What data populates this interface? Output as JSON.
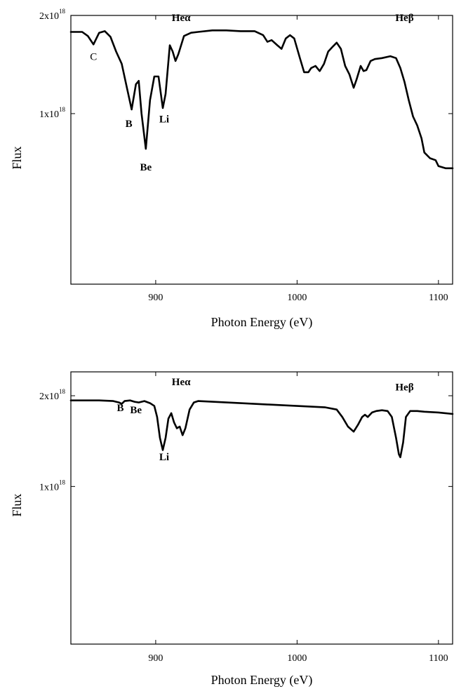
{
  "chart_data": [
    {
      "type": "line",
      "title": "",
      "xlabel": "Photon Energy (eV)",
      "ylabel": "Flux",
      "xlim": [
        840,
        1110
      ],
      "ylim_log": [
        3e+17,
        2e+18
      ],
      "x_ticks": [
        900,
        1000,
        1100
      ],
      "y_ticks": [
        {
          "value": 1e+18,
          "mantissa": "1x10",
          "exp": "18"
        },
        {
          "value": 2e+18,
          "mantissa": "2x10",
          "exp": "18"
        }
      ],
      "grid": false,
      "annotations": [
        {
          "text": "Heα",
          "x": 918,
          "y": 1.92e+18
        },
        {
          "text": "Heβ",
          "x": 1076,
          "y": 1.92e+18
        },
        {
          "text": "C",
          "x": 856,
          "y": 1.46e+18
        },
        {
          "text": "B",
          "x": 881,
          "y": 9.1e+17
        },
        {
          "text": "Be",
          "x": 893,
          "y": 6.7e+17
        },
        {
          "text": "Li",
          "x": 906,
          "y": 9.4e+17
        }
      ],
      "series": [
        {
          "x": [
            840,
            848,
            852,
            856,
            860,
            864,
            868,
            872,
            876,
            880,
            883,
            886,
            888,
            890,
            893,
            896,
            899,
            902,
            905,
            907,
            910,
            912,
            914,
            916,
            920,
            925,
            930,
            940,
            950,
            960,
            970,
            976,
            979,
            982,
            986,
            989,
            992,
            995,
            998,
            1002,
            1005,
            1008,
            1010,
            1013,
            1016,
            1019,
            1022,
            1025,
            1028,
            1031,
            1034,
            1037,
            1040,
            1042,
            1045,
            1047,
            1049,
            1052,
            1055,
            1060,
            1066,
            1070,
            1073,
            1076,
            1079,
            1082,
            1085,
            1088,
            1090,
            1094,
            1098,
            1100,
            1105,
            1110
          ],
          "y": [
            1.78e+18,
            1.78e+18,
            1.73e+18,
            1.63e+18,
            1.77e+18,
            1.79e+18,
            1.72e+18,
            1.55e+18,
            1.42e+18,
            1.18e+18,
            1.03e+18,
            1.23e+18,
            1.26e+18,
            1e+18,
            7.8e+17,
            1.1e+18,
            1.3e+18,
            1.3e+18,
            1.04e+18,
            1.15e+18,
            1.62e+18,
            1.55e+18,
            1.45e+18,
            1.52e+18,
            1.73e+18,
            1.77e+18,
            1.78e+18,
            1.8e+18,
            1.8e+18,
            1.79e+18,
            1.79e+18,
            1.74e+18,
            1.66e+18,
            1.68e+18,
            1.62e+18,
            1.58e+18,
            1.7e+18,
            1.74e+18,
            1.7e+18,
            1.48e+18,
            1.34e+18,
            1.34e+18,
            1.38e+18,
            1.4e+18,
            1.35e+18,
            1.42e+18,
            1.55e+18,
            1.6e+18,
            1.65e+18,
            1.58e+18,
            1.4e+18,
            1.32e+18,
            1.2e+18,
            1.27e+18,
            1.4e+18,
            1.35e+18,
            1.36e+18,
            1.45e+18,
            1.47e+18,
            1.48e+18,
            1.5e+18,
            1.48e+18,
            1.38e+18,
            1.25e+18,
            1.1e+18,
            9.8e+17,
            9.2e+17,
            8.4e+17,
            7.6e+17,
            7.3e+17,
            7.2e+17,
            6.9e+17,
            6.8e+17,
            6.8e+17
          ]
        }
      ]
    },
    {
      "type": "line",
      "title": "",
      "xlabel": "Photon Energy (eV)",
      "ylabel": "Flux",
      "xlim": [
        840,
        1110
      ],
      "ylim_log": [
        3e+17,
        2.4e+18
      ],
      "x_ticks": [
        900,
        1000,
        1100
      ],
      "y_ticks": [
        {
          "value": 1e+18,
          "mantissa": "1x10",
          "exp": "18"
        },
        {
          "value": 2e+18,
          "mantissa": "2x10",
          "exp": "18"
        }
      ],
      "grid": false,
      "annotations": [
        {
          "text": "Heα",
          "x": 918,
          "y": 2.17e+18
        },
        {
          "text": "Heβ",
          "x": 1076,
          "y": 2.08e+18
        },
        {
          "text": "B",
          "x": 875,
          "y": 1.78e+18
        },
        {
          "text": "Be",
          "x": 886,
          "y": 1.75e+18
        },
        {
          "text": "Li",
          "x": 906,
          "y": 1.22e+18
        }
      ],
      "series": [
        {
          "x": [
            840,
            850,
            860,
            870,
            874,
            876,
            878,
            882,
            885,
            888,
            892,
            896,
            899,
            901,
            903,
            905,
            907,
            909,
            911,
            913,
            915,
            917,
            919,
            921,
            924,
            927,
            930,
            940,
            960,
            980,
            1000,
            1020,
            1028,
            1032,
            1036,
            1040,
            1043,
            1046,
            1048,
            1050,
            1053,
            1056,
            1060,
            1064,
            1067,
            1070,
            1072,
            1073,
            1075,
            1077,
            1080,
            1085,
            1090,
            1100,
            1110
          ],
          "y": [
            1.93e+18,
            1.93e+18,
            1.93e+18,
            1.92e+18,
            1.9e+18,
            1.88e+18,
            1.92e+18,
            1.93e+18,
            1.91e+18,
            1.9e+18,
            1.92e+18,
            1.89e+18,
            1.85e+18,
            1.7e+18,
            1.45e+18,
            1.32e+18,
            1.45e+18,
            1.68e+18,
            1.75e+18,
            1.63e+18,
            1.56e+18,
            1.58e+18,
            1.48e+18,
            1.56e+18,
            1.8e+18,
            1.9e+18,
            1.92e+18,
            1.91e+18,
            1.89e+18,
            1.87e+18,
            1.85e+18,
            1.83e+18,
            1.8e+18,
            1.7e+18,
            1.58e+18,
            1.52e+18,
            1.6e+18,
            1.7e+18,
            1.73e+18,
            1.7e+18,
            1.76e+18,
            1.78e+18,
            1.79e+18,
            1.78e+18,
            1.7e+18,
            1.45e+18,
            1.28e+18,
            1.25e+18,
            1.4e+18,
            1.7e+18,
            1.78e+18,
            1.78e+18,
            1.77e+18,
            1.76e+18,
            1.74e+18
          ]
        }
      ]
    }
  ]
}
